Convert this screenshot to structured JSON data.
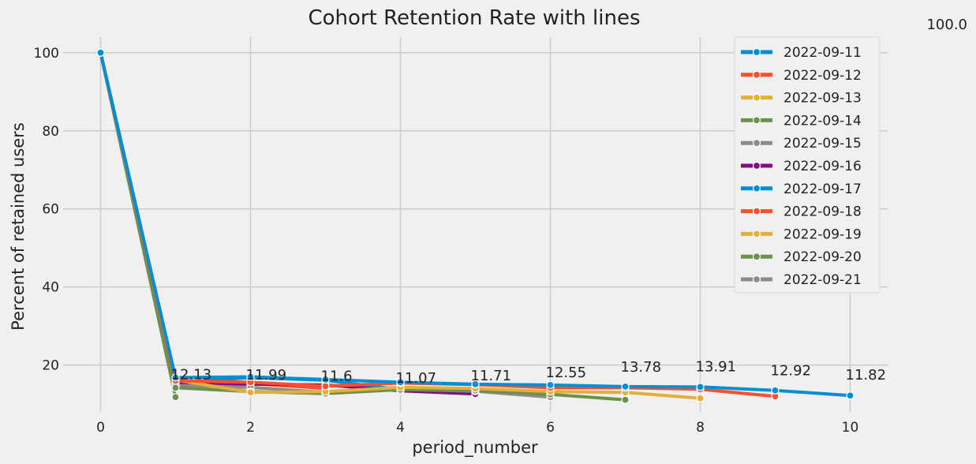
{
  "chart_data": {
    "type": "line",
    "title": "Cohort Retention Rate with lines",
    "xlabel": "period_number",
    "ylabel": "Percent of retained users",
    "xlim": [
      -0.5,
      10.5
    ],
    "ylim": [
      8,
      104
    ],
    "xticks": [
      0,
      2,
      4,
      6,
      8,
      10
    ],
    "yticks": [
      20,
      40,
      60,
      80,
      100
    ],
    "grid": true,
    "legend_position": "top-right",
    "markers": "circle",
    "series": [
      {
        "name": "2022-09-11",
        "color": "#008fd5",
        "x": [
          0,
          1,
          2,
          3,
          4,
          5,
          6,
          7,
          8,
          9,
          10
        ],
        "values": [
          100,
          16.8,
          17.0,
          16.3,
          15.6,
          15.1,
          14.9,
          14.5,
          14.4,
          13.5,
          12.2
        ]
      },
      {
        "name": "2022-09-12",
        "color": "#fc4f30",
        "x": [
          0,
          1,
          2,
          3,
          4,
          5,
          6,
          7,
          8,
          9
        ],
        "values": [
          100,
          16.0,
          15.6,
          14.6,
          15.4,
          15.0,
          14.2,
          14.2,
          13.8,
          12.0
        ]
      },
      {
        "name": "2022-09-13",
        "color": "#e5ae38",
        "x": [
          0,
          1,
          2,
          3,
          4,
          5,
          6,
          7,
          8
        ],
        "values": [
          100,
          16.2,
          13.0,
          13.2,
          14.3,
          14.0,
          13.2,
          13.0,
          11.5
        ]
      },
      {
        "name": "2022-09-14",
        "color": "#6d904f",
        "x": [
          0,
          1,
          2,
          3,
          4,
          5,
          6,
          7
        ],
        "values": [
          100,
          14.2,
          13.2,
          12.7,
          13.7,
          13.5,
          12.5,
          11.1
        ]
      },
      {
        "name": "2022-09-15",
        "color": "#8b8b8b",
        "x": [
          0,
          1,
          2,
          3,
          4,
          5,
          6
        ],
        "values": [
          100,
          14.8,
          14.3,
          13.0,
          13.8,
          13.3,
          11.8
        ]
      },
      {
        "name": "2022-09-16",
        "color": "#810f7c",
        "x": [
          0,
          1,
          2,
          3,
          4,
          5
        ],
        "values": [
          100,
          15.2,
          15.1,
          14.9,
          13.4,
          12.6
        ]
      },
      {
        "name": "2022-09-17",
        "color": "#008fd5",
        "x": [
          0,
          1,
          2,
          3,
          4
        ],
        "values": [
          100,
          15.5,
          16.8,
          16.1,
          13.7
        ]
      },
      {
        "name": "2022-09-18",
        "color": "#fc4f30",
        "x": [
          0,
          1,
          2,
          3
        ],
        "values": [
          100,
          15.8,
          15.3,
          14.0
        ]
      },
      {
        "name": "2022-09-19",
        "color": "#e5ae38",
        "x": [
          0,
          1,
          2
        ],
        "values": [
          100,
          16.5,
          13.1
        ]
      },
      {
        "name": "2022-09-20",
        "color": "#6d904f",
        "x": [
          0,
          1
        ],
        "values": [
          100,
          11.8
        ]
      },
      {
        "name": "2022-09-21",
        "color": "#8b8b8b",
        "x": [
          0
        ],
        "values": [
          100
        ]
      }
    ],
    "annotations": [
      {
        "x": 0,
        "y": 100.0,
        "text": "100.0"
      },
      {
        "x": 1,
        "y": 16.4,
        "text": "12.13"
      },
      {
        "x": 2,
        "y": 16.3,
        "text": "11.99"
      },
      {
        "x": 3,
        "y": 16.0,
        "text": "11.6"
      },
      {
        "x": 4,
        "y": 15.5,
        "text": "11.07"
      },
      {
        "x": 5,
        "y": 16.1,
        "text": "11.71"
      },
      {
        "x": 6,
        "y": 16.9,
        "text": "12.55"
      },
      {
        "x": 7,
        "y": 18.3,
        "text": "13.78"
      },
      {
        "x": 8,
        "y": 18.4,
        "text": "13.91"
      },
      {
        "x": 9,
        "y": 17.4,
        "text": "12.92"
      },
      {
        "x": 10,
        "y": 16.3,
        "text": "11.82"
      }
    ]
  }
}
